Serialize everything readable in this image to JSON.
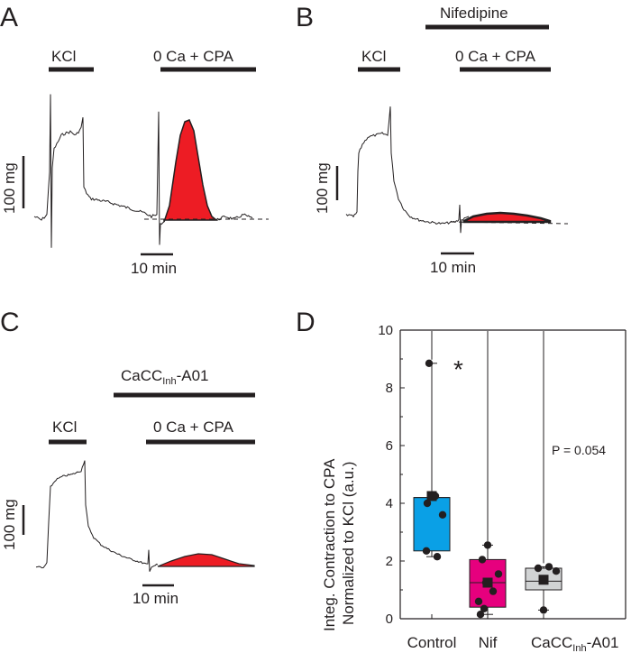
{
  "panels": {
    "A": {
      "label": "A",
      "kcl": "KCl",
      "cpa": "0 Ca + CPA",
      "scale_y": "100 mg",
      "scale_x": "10 min",
      "trace": [
        [
          0,
          200
        ],
        [
          10,
          205
        ],
        [
          17,
          200
        ],
        [
          18,
          40
        ],
        [
          19,
          180
        ],
        [
          22,
          130
        ],
        [
          30,
          125
        ],
        [
          45,
          123
        ],
        [
          50,
          118
        ],
        [
          60,
          110
        ],
        [
          65,
          112
        ],
        [
          70,
          106
        ],
        [
          75,
          110
        ],
        [
          80,
          106
        ],
        [
          85,
          108
        ],
        [
          90,
          108
        ],
        [
          95,
          110
        ],
        [
          100,
          108
        ],
        [
          103,
          110
        ],
        [
          105,
          115
        ],
        [
          108,
          95
        ],
        [
          110,
          90
        ],
        [
          115,
          94
        ],
        [
          118,
          88
        ],
        [
          120,
          110
        ],
        [
          125,
          122
        ],
        [
          130,
          150
        ],
        [
          140,
          158
        ],
        [
          150,
          160
        ],
        [
          160,
          164
        ],
        [
          170,
          166
        ],
        [
          180,
          168
        ],
        [
          190,
          174
        ],
        [
          200,
          172
        ],
        [
          210,
          180
        ],
        [
          220,
          182
        ],
        [
          230,
          186
        ],
        [
          238,
          188
        ],
        [
          245,
          195
        ],
        [
          252,
          200
        ],
        [
          260,
          202
        ],
        [
          270,
          205
        ],
        [
          280,
          203
        ],
        [
          285,
          194
        ],
        [
          290,
          190
        ],
        [
          295,
          200
        ],
        [
          296,
          210
        ],
        [
          298,
          245
        ],
        [
          300,
          252
        ],
        [
          305,
          250
        ],
        [
          308,
          240
        ]
      ],
      "fill": [
        [
          305,
          250
        ],
        [
          315,
          205
        ],
        [
          325,
          150
        ],
        [
          330,
          138
        ],
        [
          340,
          132
        ],
        [
          350,
          136
        ],
        [
          360,
          150
        ],
        [
          368,
          175
        ],
        [
          375,
          200
        ],
        [
          382,
          225
        ],
        [
          390,
          240
        ],
        [
          395,
          245
        ],
        [
          400,
          246
        ]
      ],
      "tail": [
        [
          400,
          246
        ],
        [
          410,
          248
        ],
        [
          420,
          244
        ],
        [
          430,
          246
        ],
        [
          440,
          250
        ],
        [
          455,
          245
        ],
        [
          470,
          244
        ],
        [
          480,
          242
        ]
      ],
      "baseline_y": 244,
      "baseline_x": [
        0,
        520
      ]
    },
    "B": {
      "label": "B",
      "nif": "Nifedipine",
      "kcl": "KCl",
      "cpa": "0 Ca + CPA",
      "scale_y": "100 mg",
      "scale_x": "10 min"
    },
    "C": {
      "label": "C",
      "drug_main": "CaCC",
      "drug_sub": "Inh",
      "drug_end": "-A01",
      "kcl": "KCl",
      "cpa": "0 Ca + CPA",
      "scale_y": "100 mg",
      "scale_x": "10 min"
    },
    "D": {
      "label": "D",
      "ylabel_line1": "Integ. Contraction to CPA",
      "ylabel_line2": "Normalized to KCl (a.u.)",
      "significance": "*",
      "p_value": "P = 0.054",
      "xcat3_main": "CaCC",
      "xcat3_sub": "Inh",
      "xcat3_end": "-A01"
    }
  },
  "chart_data": {
    "type": "box",
    "title": "",
    "xlabel": "",
    "ylabel": "Integ. Contraction to CPA Normalized to KCl (a.u.)",
    "ylim": [
      0,
      10
    ],
    "yticks": [
      0,
      2,
      4,
      6,
      8,
      10
    ],
    "categories": [
      "Control",
      "Nif",
      "CaCC-Inh-A01"
    ],
    "boxes": [
      {
        "name": "Control",
        "q1": 2.35,
        "q3": 4.2,
        "median": 4.2,
        "mean": 4.25,
        "whisker_low": 2.15,
        "whisker_high": 8.85,
        "color": "#0aa0e6",
        "points": [
          8.85,
          4.25,
          4.0,
          3.6,
          2.35,
          2.15
        ]
      },
      {
        "name": "Nif",
        "q1": 0.4,
        "q3": 2.05,
        "median": 1.25,
        "mean": 1.25,
        "whisker_low": 0.15,
        "whisker_high": 2.55,
        "color": "#e6007e",
        "points": [
          2.55,
          2.05,
          1.55,
          1.25,
          0.95,
          0.6,
          0.35,
          0.15
        ]
      },
      {
        "name": "CaCC-Inh-A01",
        "q1": 1.0,
        "q3": 1.75,
        "median": 1.3,
        "mean": 1.35,
        "whisker_low": 0.3,
        "whisker_high": 1.8,
        "color": "#d1d3d4",
        "points": [
          1.8,
          1.75,
          1.65,
          0.3
        ]
      }
    ]
  },
  "colors": {
    "ink": "#231f20",
    "fill_red": "#ed1c24"
  }
}
